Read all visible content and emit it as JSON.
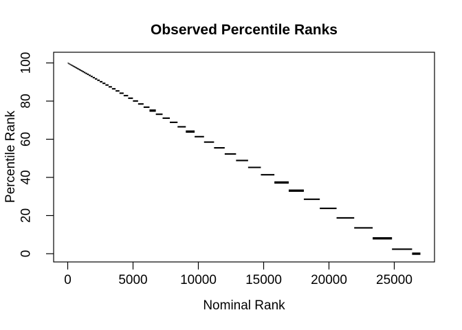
{
  "chart_data": {
    "type": "scatter",
    "title": "Observed Percentile Ranks",
    "xlabel": "Nominal Rank",
    "ylabel": "Percentile Rank",
    "marker": "tiny-point-runs (ties form horizontal dash segments)",
    "fg_color": "#000000",
    "bg_color": "#ffffff",
    "xlim": [
      -1079,
      28080
    ],
    "ylim": [
      -4.32,
      105.6
    ],
    "x_ticks": [
      0,
      5000,
      10000,
      15000,
      20000,
      25000
    ],
    "x_tick_labels": [
      "0",
      "5000",
      "10000",
      "15000",
      "20000",
      "25000"
    ],
    "y_ticks": [
      0,
      20,
      40,
      60,
      80,
      100
    ],
    "y_tick_labels": [
      "0",
      "20",
      "40",
      "60",
      "80",
      "100"
    ],
    "grid": false,
    "legend": null,
    "total_ranks": 27000,
    "segments_format": [
      "rank_start",
      "rank_end",
      "percentile_rank",
      "bold_flag_optional"
    ],
    "segments": [
      [
        0,
        8,
        99.97
      ],
      [
        8,
        17,
        99.94
      ],
      [
        17,
        27,
        99.9
      ],
      [
        27,
        38,
        99.86
      ],
      [
        38,
        50,
        99.81
      ],
      [
        50,
        63,
        99.77
      ],
      [
        63,
        77,
        99.71
      ],
      [
        77,
        92,
        99.66
      ],
      [
        92,
        109,
        99.6
      ],
      [
        109,
        127,
        99.53
      ],
      [
        127,
        147,
        99.46
      ],
      [
        147,
        169,
        99.37
      ],
      [
        169,
        193,
        99.29
      ],
      [
        193,
        219,
        99.19
      ],
      [
        219,
        247,
        99.09
      ],
      [
        247,
        278,
        98.97
      ],
      [
        278,
        312,
        98.84
      ],
      [
        312,
        349,
        98.71
      ],
      [
        349,
        389,
        98.56
      ],
      [
        389,
        432,
        98.4
      ],
      [
        432,
        479,
        98.23
      ],
      [
        479,
        530,
        98.04
      ],
      [
        530,
        586,
        97.83
      ],
      [
        586,
        647,
        97.6
      ],
      [
        647,
        713,
        97.36
      ],
      [
        713,
        784,
        97.1
      ],
      [
        784,
        861,
        96.81
      ],
      [
        861,
        945,
        96.5
      ],
      [
        945,
        1036,
        96.16
      ],
      [
        1036,
        1134,
        95.8
      ],
      [
        1134,
        1240,
        95.41
      ],
      [
        1240,
        1355,
        94.98
      ],
      [
        1355,
        1479,
        94.52
      ],
      [
        1479,
        1613,
        94.03
      ],
      [
        1613,
        1757,
        93.49
      ],
      [
        1757,
        1912,
        92.92
      ],
      [
        1912,
        2079,
        92.3
      ],
      [
        2079,
        2259,
        91.63
      ],
      [
        2259,
        2453,
        90.91
      ],
      [
        2453,
        2662,
        90.14
      ],
      [
        2662,
        2886,
        89.31
      ],
      [
        2886,
        3127,
        88.42
      ],
      [
        3127,
        3386,
        87.46
      ],
      [
        3386,
        3664,
        86.43
      ],
      [
        3664,
        3962,
        85.33
      ],
      [
        3962,
        4282,
        84.14
      ],
      [
        4282,
        4625,
        82.87
      ],
      [
        4625,
        4993,
        81.51
      ],
      [
        4993,
        5387,
        80.05
      ],
      [
        5387,
        5809,
        78.49
      ],
      [
        5809,
        6261,
        76.81
      ],
      [
        6261,
        6745,
        75.02,
        1
      ],
      [
        6745,
        7263,
        73.1
      ],
      [
        7263,
        7817,
        71.05
      ],
      [
        7817,
        8409,
        68.86
      ],
      [
        8409,
        9041,
        66.52
      ],
      [
        9041,
        9716,
        64.01,
        1
      ],
      [
        9716,
        10436,
        61.35
      ],
      [
        10436,
        11203,
        58.51
      ],
      [
        11203,
        12019,
        55.49
      ],
      [
        12019,
        12887,
        52.27
      ],
      [
        12887,
        13809,
        48.86
      ],
      [
        13809,
        14787,
        45.23
      ],
      [
        14787,
        15823,
        41.4
      ],
      [
        15823,
        16919,
        37.34,
        1
      ],
      [
        16919,
        18077,
        33.05,
        1
      ],
      [
        18077,
        19298,
        28.53
      ],
      [
        19298,
        20583,
        23.77
      ],
      [
        20583,
        21933,
        18.77
      ],
      [
        21933,
        23348,
        13.53
      ],
      [
        23348,
        24826,
        8.05,
        1
      ],
      [
        24826,
        26364,
        2.36
      ],
      [
        26364,
        27000,
        0,
        1
      ]
    ]
  }
}
